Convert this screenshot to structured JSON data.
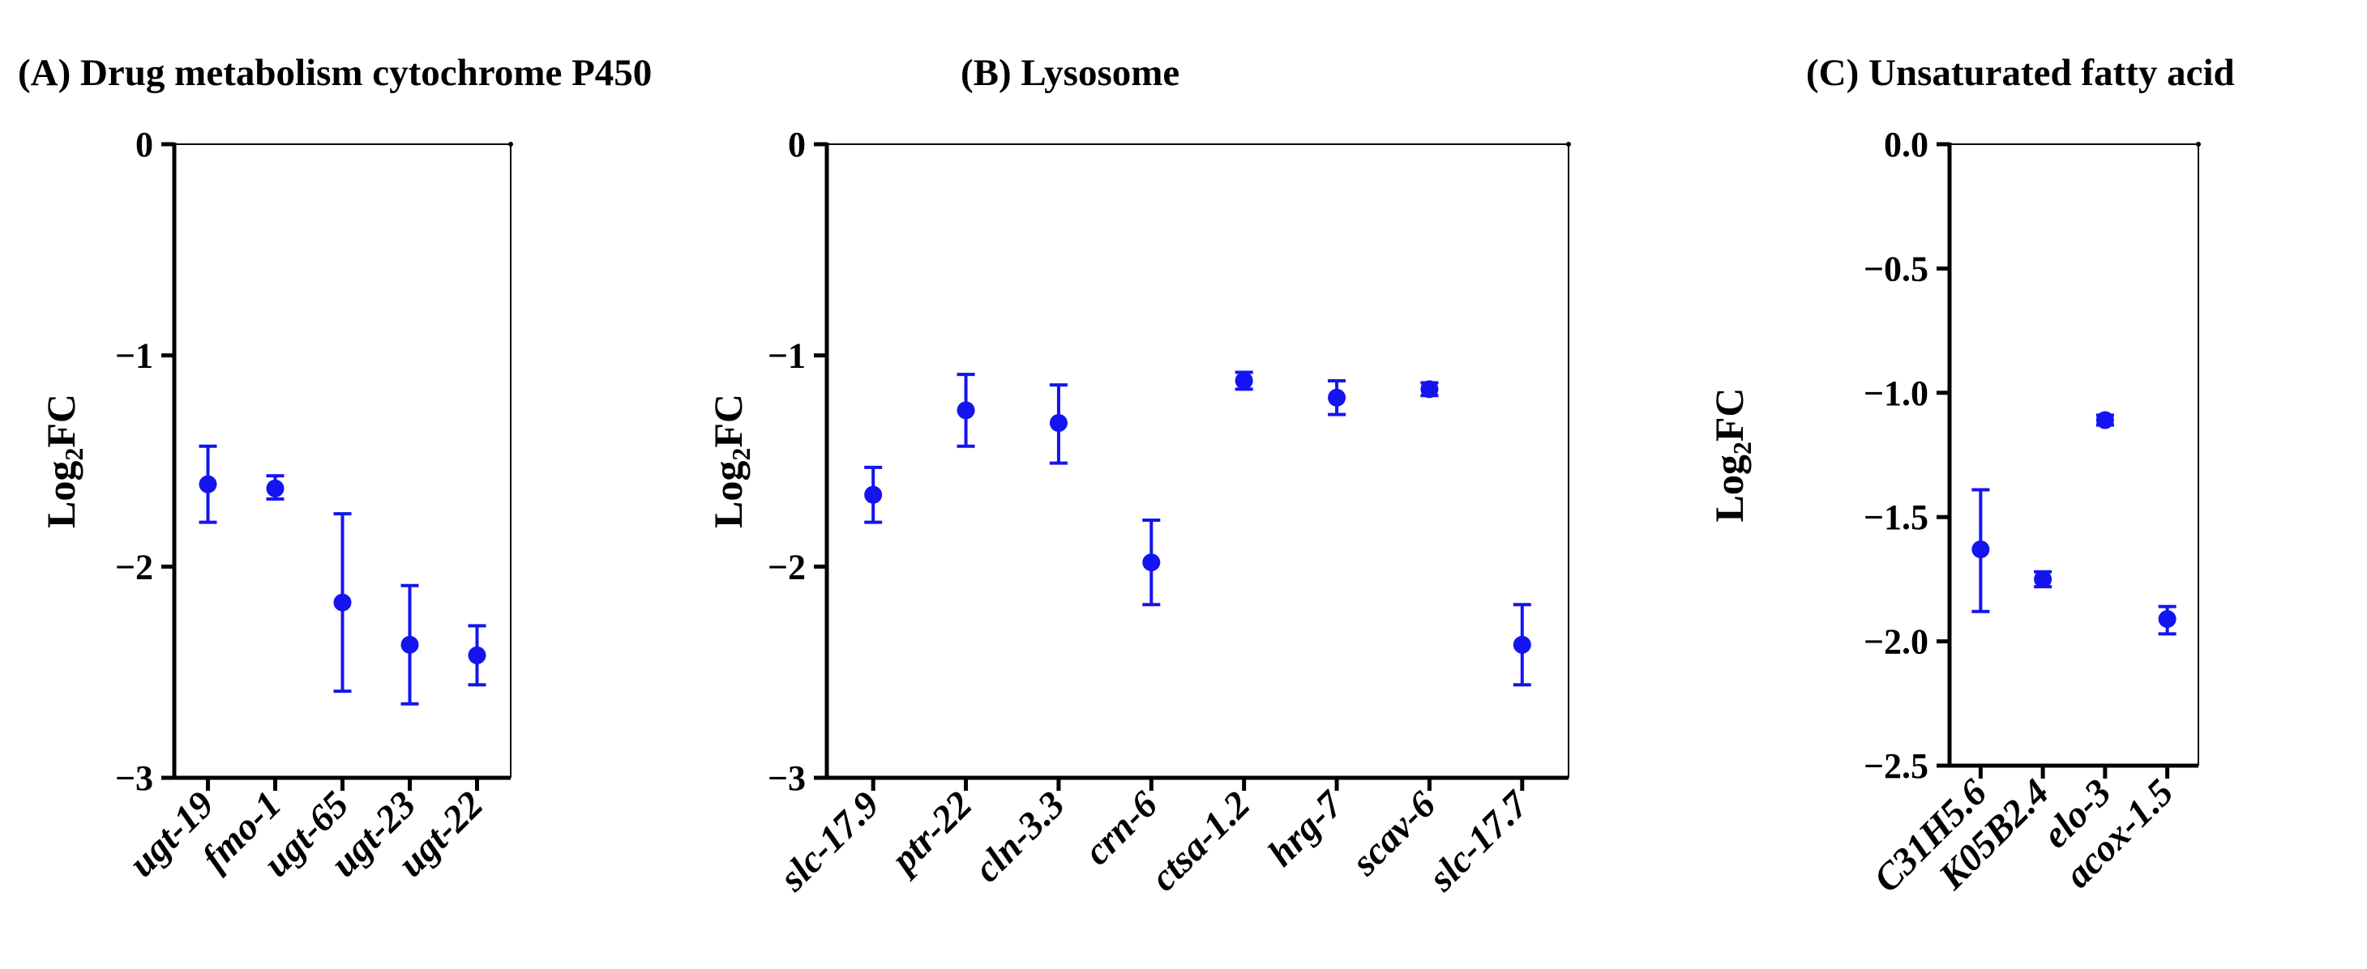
{
  "chart_data": [
    {
      "type": "scatter",
      "title": "(A) Drug metabolism cytochrome P450",
      "ylabel": "Log2FC",
      "ylabel_main": "Log",
      "ylabel_sub": "2",
      "ylabel_tail": "FC",
      "ylim": [
        -3,
        0
      ],
      "yticks": [
        0,
        -1,
        -2,
        -3
      ],
      "ytick_labels": [
        "0",
        "−1",
        "−2",
        "−3"
      ],
      "categories": [
        "ugt-19",
        "fmo-1",
        "ugt-65",
        "ugt-23",
        "ugt-22"
      ],
      "values": [
        -1.61,
        -1.63,
        -2.17,
        -2.37,
        -2.42
      ],
      "err_low": [
        -1.79,
        -1.68,
        -2.59,
        -2.65,
        -2.56
      ],
      "err_high": [
        -1.43,
        -1.57,
        -1.75,
        -2.09,
        -2.28
      ],
      "color": "#1414f0"
    },
    {
      "type": "scatter",
      "title": "(B) Lysosome",
      "ylabel": "Log2FC",
      "ylabel_main": "Log",
      "ylabel_sub": "2",
      "ylabel_tail": "FC",
      "ylim": [
        -3,
        0
      ],
      "yticks": [
        0,
        -1,
        -2,
        -3
      ],
      "ytick_labels": [
        "0",
        "−1",
        "−2",
        "−3"
      ],
      "categories": [
        "slc-17.9",
        "ptr-22",
        "cln-3.3",
        "crn-6",
        "ctsa-1.2",
        "hrg-7",
        "scav-6",
        "slc-17.7"
      ],
      "values": [
        -1.66,
        -1.26,
        -1.32,
        -1.98,
        -1.12,
        -1.2,
        -1.16,
        -2.37
      ],
      "err_low": [
        -1.79,
        -1.43,
        -1.51,
        -2.18,
        -1.16,
        -1.28,
        -1.19,
        -2.56
      ],
      "err_high": [
        -1.53,
        -1.09,
        -1.14,
        -1.78,
        -1.08,
        -1.12,
        -1.13,
        -2.18
      ],
      "color": "#1414f0"
    },
    {
      "type": "scatter",
      "title": "(C) Unsaturated fatty acid",
      "ylabel": "Log2FC",
      "ylabel_main": "Log",
      "ylabel_sub": "2",
      "ylabel_tail": "FC",
      "ylim": [
        -2.5,
        0
      ],
      "yticks": [
        0,
        -0.5,
        -1,
        -1.5,
        -2,
        -2.5
      ],
      "ytick_labels": [
        "0.0",
        "−0.5",
        "−1.0",
        "−1.5",
        "−2.0",
        "−2.5"
      ],
      "categories": [
        "C31H5.6",
        "K05B2.4",
        "elo-3",
        "acox-1.5"
      ],
      "values": [
        -1.63,
        -1.75,
        -1.11,
        -1.91
      ],
      "err_low": [
        -1.88,
        -1.78,
        -1.13,
        -1.97
      ],
      "err_high": [
        -1.39,
        -1.72,
        -1.09,
        -1.86
      ],
      "color": "#1414f0"
    }
  ]
}
